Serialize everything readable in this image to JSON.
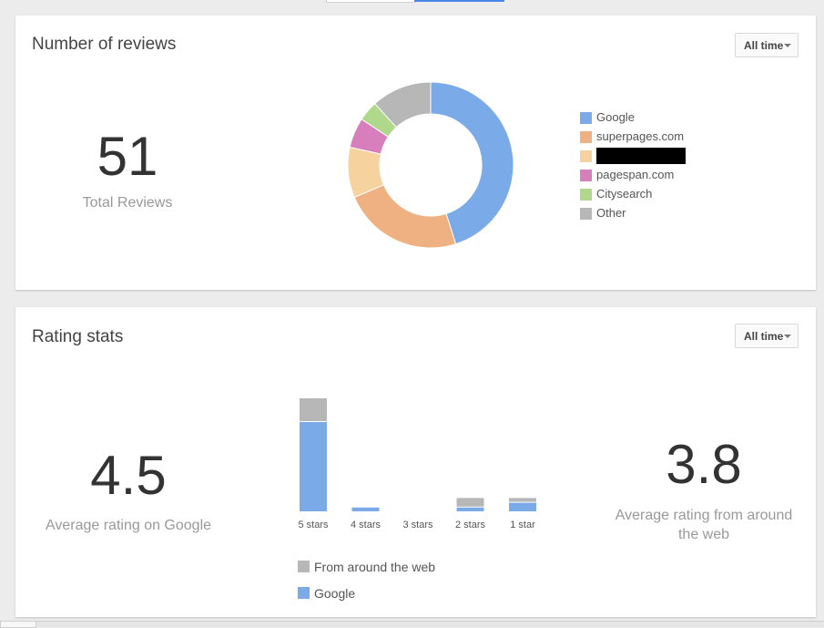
{
  "reviews_card": {
    "title": "Number of reviews",
    "range": "All time",
    "total": "51",
    "total_label": "Total Reviews"
  },
  "rating_card": {
    "title": "Rating stats",
    "range": "All time",
    "google_avg": "4.5",
    "google_avg_label": "Average rating on Google",
    "web_avg": "3.8",
    "web_avg_label_line1": "Average rating from around",
    "web_avg_label_line2": "the web",
    "bar_legend": [
      {
        "label": "From around the web",
        "color": "#b7b7b7"
      },
      {
        "label": "Google",
        "color": "#7baae8"
      }
    ]
  },
  "colors": {
    "google": "#7baae8",
    "superpages": "#efb082",
    "redacted": "#f6d39e",
    "pagespan": "#d77fbd",
    "citysearch": "#b0d88a",
    "other": "#b7b7b7"
  },
  "chart_data": [
    {
      "type": "pie",
      "donut": true,
      "title": "",
      "categories": [
        "Google",
        "superpages.com",
        "[redacted]",
        "pagespan.com",
        "Citysearch",
        "Other"
      ],
      "values": [
        23,
        12,
        5,
        3,
        2,
        6
      ],
      "colors": [
        "#7baae8",
        "#efb082",
        "#f6d39e",
        "#d77fbd",
        "#b0d88a",
        "#b7b7b7"
      ],
      "legend": "right",
      "redacted_legend_index": 2
    },
    {
      "type": "bar",
      "stacked": true,
      "categories": [
        "5 stars",
        "4 stars",
        "3 stars",
        "2 stars",
        "1 star"
      ],
      "series": [
        {
          "name": "Google",
          "values": [
            19,
            1,
            0,
            1,
            2
          ],
          "color": "#7baae8"
        },
        {
          "name": "From around the web",
          "values": [
            5,
            0,
            0,
            2,
            1
          ],
          "color": "#b7b7b7"
        }
      ],
      "ylim": [
        0,
        24
      ],
      "grid": false,
      "legend": "bottom-left"
    }
  ]
}
